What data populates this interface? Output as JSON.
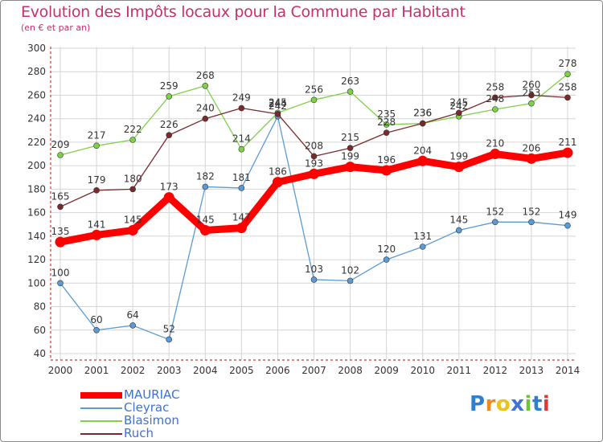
{
  "header": {
    "title": "Evolution des Impôts locaux pour la Commune par Habitant",
    "subtitle": "(en € et par an)"
  },
  "logo": {
    "text": "Proxiti"
  },
  "colors": {
    "title": "#c8306b",
    "mauriac": "#ff0000",
    "cleyrac": "#5b9bd5",
    "blasimon": "#7ed148",
    "ruch": "#7a2a2a",
    "grid": "#d4d4d4"
  },
  "chart_data": {
    "type": "line",
    "title": "Evolution des Impôts locaux pour la Commune par Habitant",
    "subtitle": "(en € et par an)",
    "xlabel": "",
    "ylabel": "",
    "ylim": [
      40,
      300
    ],
    "yticks": [
      40,
      60,
      80,
      100,
      120,
      140,
      160,
      180,
      200,
      220,
      240,
      260,
      280,
      300
    ],
    "grid": true,
    "legend_position": "bottom-left",
    "x": [
      "2000",
      "2001",
      "2002",
      "2003",
      "2004",
      "2005",
      "2006",
      "2007",
      "2008",
      "2009",
      "2010",
      "2011",
      "2012",
      "2013",
      "2014"
    ],
    "series": [
      {
        "name": "MAURIAC",
        "color": "#ff0000",
        "values": [
          135,
          141,
          145,
          173,
          145,
          147,
          186,
          193,
          199,
          196,
          204,
          199,
          210,
          206,
          211
        ]
      },
      {
        "name": "Cleyrac",
        "color": "#5b9bd5",
        "values": [
          100,
          60,
          64,
          52,
          182,
          181,
          242,
          103,
          102,
          120,
          131,
          145,
          152,
          152,
          149
        ]
      },
      {
        "name": "Blasimon",
        "color": "#7ed148",
        "values": [
          209,
          217,
          222,
          259,
          268,
          214,
          245,
          256,
          263,
          235,
          236,
          242,
          248,
          253,
          278
        ]
      },
      {
        "name": "Ruch",
        "color": "#7a2a2a",
        "values": [
          165,
          179,
          180,
          226,
          240,
          249,
          244,
          208,
          215,
          228,
          236,
          245,
          258,
          260,
          258
        ]
      }
    ]
  }
}
